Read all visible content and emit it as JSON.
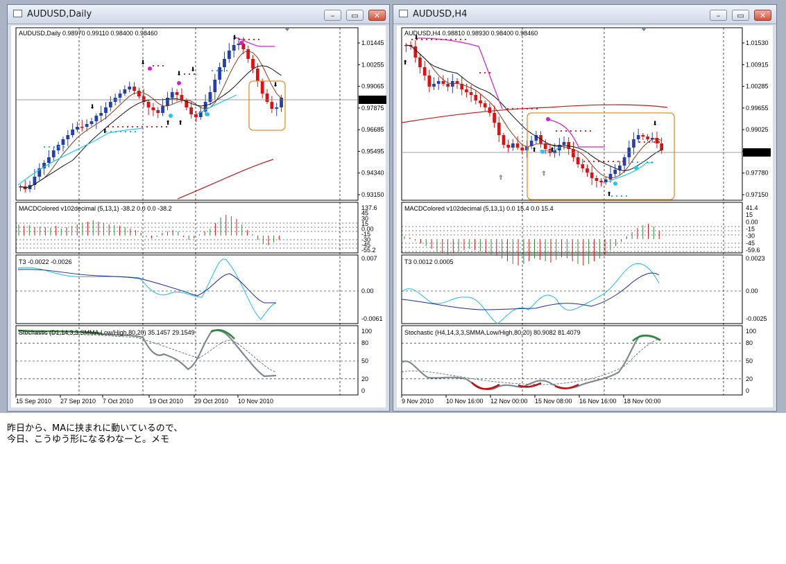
{
  "windows": [
    {
      "id": "daily",
      "title": "AUDUSD,Daily",
      "buttons": {
        "minimize": "–",
        "maximize": "▭",
        "close": "✕"
      },
      "main_header": "AUDUSD,Daily  0.98970 0.99110 0.98400 0.98460",
      "price_ticks": [
        "1.01445",
        "1.00255",
        "0.99065",
        "0.97875",
        "0.96685",
        "0.95495",
        "0.94340",
        "0.93150"
      ],
      "current_price": "0.98460",
      "macd_header": "MACDColored v102decimal (5,13,1) -38.2 0.0 0.0 -38.2",
      "macd_ticks": [
        "137.6",
        "45",
        "30",
        "15",
        "0.00",
        "-15",
        "-30",
        "-45",
        "-55.2"
      ],
      "t3_header": "T3 -0.0022 -0.0026",
      "t3_ticks": [
        "0.007",
        "0.00",
        "-0.0061"
      ],
      "stoch_header": "Stochastic (D1,14,3,3,SMMA,Low/High,80,20) 35.1457 29.1549",
      "stoch_ticks": [
        "100",
        "80",
        "50",
        "20",
        "0"
      ],
      "date_labels": [
        "15 Sep 2010",
        "27 Sep 2010",
        "7 Oct 2010",
        "19 Oct 2010",
        "29 Oct 2010",
        "10 Nov 2010"
      ]
    },
    {
      "id": "h4",
      "title": "AUDUSD,H4",
      "buttons": {
        "minimize": "–",
        "maximize": "▭",
        "close": "✕"
      },
      "main_header": "AUDUSD,H4  0.98810 0.98930 0.98400 0.98460",
      "price_ticks": [
        "1.01530",
        "1.00915",
        "1.00285",
        "0.99655",
        "0.99025",
        "0.98460",
        "0.97780",
        "0.97150"
      ],
      "current_price": "0.98460",
      "macd_header": "MACDColored v102decimal (5,13,1) 0.0 15.4 0.0 15.4",
      "macd_ticks": [
        "41.4",
        "15",
        "0.00",
        "-15",
        "-30",
        "-45",
        "-59.6"
      ],
      "t3_header": "T3 0.0012 0.0005",
      "t3_ticks": [
        "0.0023",
        "0.00",
        "-0.0025"
      ],
      "stoch_header": "Stochastic (H4,14,3,3,SMMA,Low/High,80,20) 80.9082 81.4079",
      "stoch_ticks": [
        "100",
        "80",
        "50",
        "20",
        "0"
      ],
      "date_labels": [
        "9 Nov 2010",
        "10 Nov 16:00",
        "12 Nov 00:00",
        "15 Nov 08:00",
        "16 Nov 16:00",
        "18 Nov 00:00"
      ]
    }
  ],
  "note": {
    "line1": "昨日から、MAに挟まれに動いているので、",
    "line2": "今日、こうゆう形になるわなーと。メモ"
  },
  "colors": {
    "bull_candle": "#2340b0",
    "bear_candle": "#e01010",
    "ma_brown": "#8b3a1a",
    "ma_black": "#111111",
    "ma_red": "#c01818",
    "band_cyan": "#20c8f0",
    "band_magenta": "#d020d0",
    "macd_up": "#2e8b3a",
    "macd_down": "#e01010",
    "box_orange": "#e0902a",
    "stoch_main": "#808890",
    "stoch_ob": "#2e8b3a",
    "stoch_os": "#c01010"
  }
}
